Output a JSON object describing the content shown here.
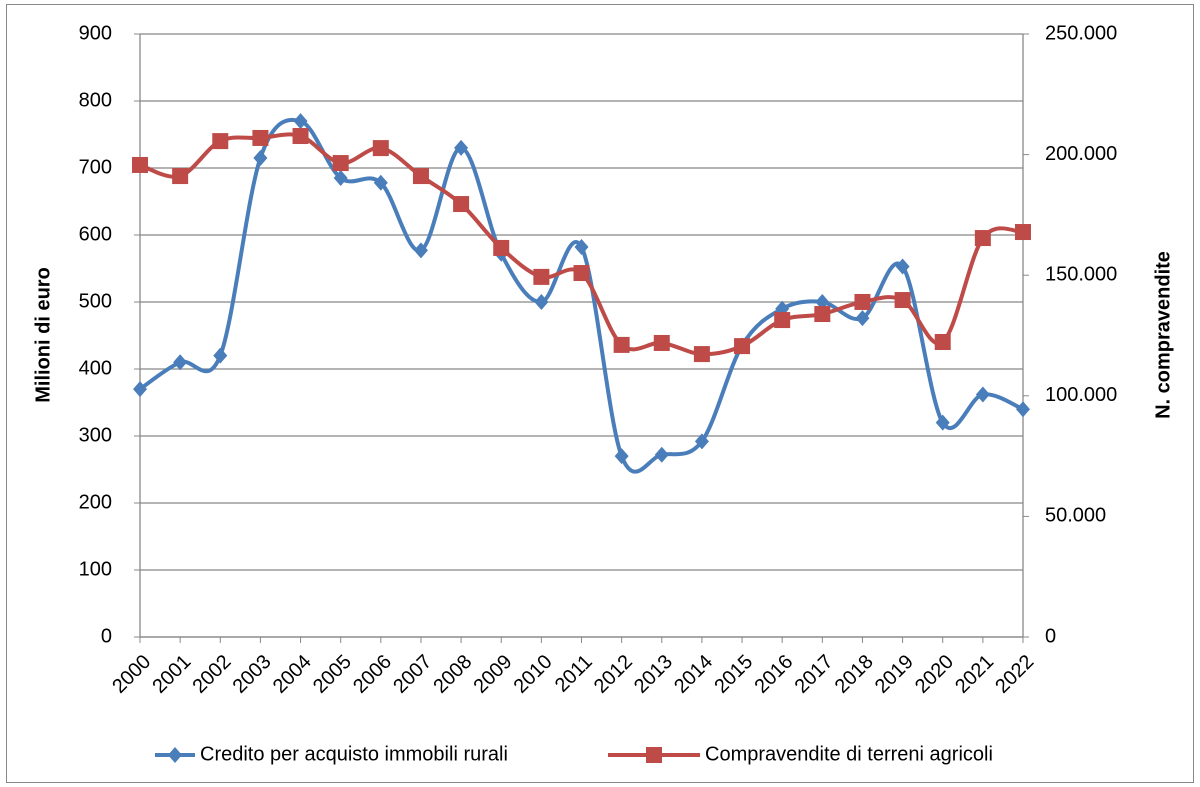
{
  "chart_data": {
    "type": "line",
    "categories": [
      "2000",
      "2001",
      "2002",
      "2003",
      "2004",
      "2005",
      "2006",
      "2007",
      "2008",
      "2009",
      "2010",
      "2011",
      "2012",
      "2013",
      "2014",
      "2015",
      "2016",
      "2017",
      "2018",
      "2019",
      "2020",
      "2021",
      "2022"
    ],
    "series": [
      {
        "name": "Credito per acquisto immobili rurali",
        "color": "#4a7ebb",
        "marker": "diamond",
        "values": [
          370,
          410,
          420,
          715,
          770,
          685,
          678,
          577,
          730,
          572,
          500,
          582,
          270,
          272,
          292,
          435,
          490,
          500,
          476,
          553,
          320,
          362,
          340
        ]
      },
      {
        "name": "Compravendite di terreni agricoli",
        "color": "#be4b48",
        "marker": "square",
        "axis": "y2",
        "values": [
          195700,
          191100,
          205600,
          206900,
          207700,
          196500,
          202700,
          191100,
          179500,
          161300,
          149300,
          150900,
          121100,
          121900,
          117300,
          120600,
          131400,
          133900,
          138900,
          139700,
          122300,
          165400,
          167900
        ]
      }
    ],
    "y_label": "Milioni di euro",
    "y2_label": "N. compravendite",
    "ylim": [
      0,
      900
    ],
    "yticks": [
      0,
      100,
      200,
      300,
      400,
      500,
      600,
      700,
      800,
      900
    ],
    "y2lim": [
      0,
      250000
    ],
    "y2ticks": [
      0,
      {
        "value": 50000,
        "label": "50.000"
      },
      {
        "value": 100000,
        "label": "100.000"
      },
      {
        "value": 150000,
        "label": "150.000"
      },
      {
        "value": 200000,
        "label": "200.000"
      },
      {
        "value": 250000,
        "label": "250.000"
      }
    ],
    "grid": true,
    "smooth": true,
    "legend": "bottom"
  }
}
